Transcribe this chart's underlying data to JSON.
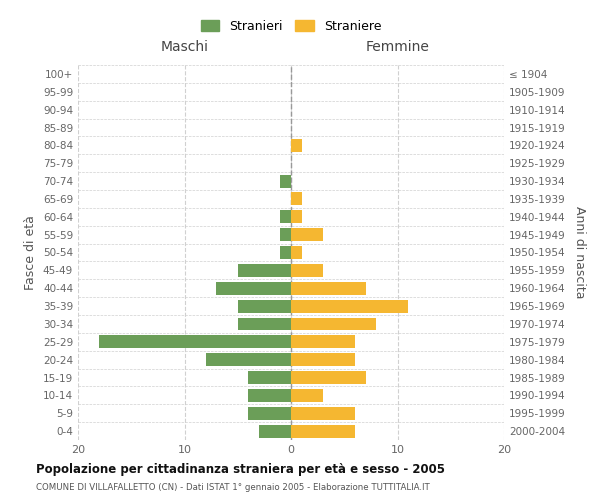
{
  "age_groups": [
    "0-4",
    "5-9",
    "10-14",
    "15-19",
    "20-24",
    "25-29",
    "30-34",
    "35-39",
    "40-44",
    "45-49",
    "50-54",
    "55-59",
    "60-64",
    "65-69",
    "70-74",
    "75-79",
    "80-84",
    "85-89",
    "90-94",
    "95-99",
    "100+"
  ],
  "birth_years": [
    "2000-2004",
    "1995-1999",
    "1990-1994",
    "1985-1989",
    "1980-1984",
    "1975-1979",
    "1970-1974",
    "1965-1969",
    "1960-1964",
    "1955-1959",
    "1950-1954",
    "1945-1949",
    "1940-1944",
    "1935-1939",
    "1930-1934",
    "1925-1929",
    "1920-1924",
    "1915-1919",
    "1910-1914",
    "1905-1909",
    "≤ 1904"
  ],
  "maschi": [
    3,
    4,
    4,
    4,
    8,
    18,
    5,
    5,
    7,
    5,
    1,
    1,
    1,
    0,
    1,
    0,
    0,
    0,
    0,
    0,
    0
  ],
  "femmine": [
    6,
    6,
    3,
    7,
    6,
    6,
    8,
    11,
    7,
    3,
    1,
    3,
    1,
    1,
    0,
    0,
    1,
    0,
    0,
    0,
    0
  ],
  "maschi_color": "#6b9e58",
  "femmine_color": "#f5b731",
  "grid_color": "#d0d0d0",
  "title": "Popolazione per cittadinanza straniera per età e sesso - 2005",
  "subtitle": "COMUNE DI VILLAFALLETTO (CN) - Dati ISTAT 1° gennaio 2005 - Elaborazione TUTTITALIA.IT",
  "xlabel_left": "Maschi",
  "xlabel_right": "Femmine",
  "ylabel_left": "Fasce di età",
  "ylabel_right": "Anni di nascita",
  "legend_maschi": "Stranieri",
  "legend_femmine": "Straniere",
  "xlim": 20,
  "bar_height": 0.72
}
